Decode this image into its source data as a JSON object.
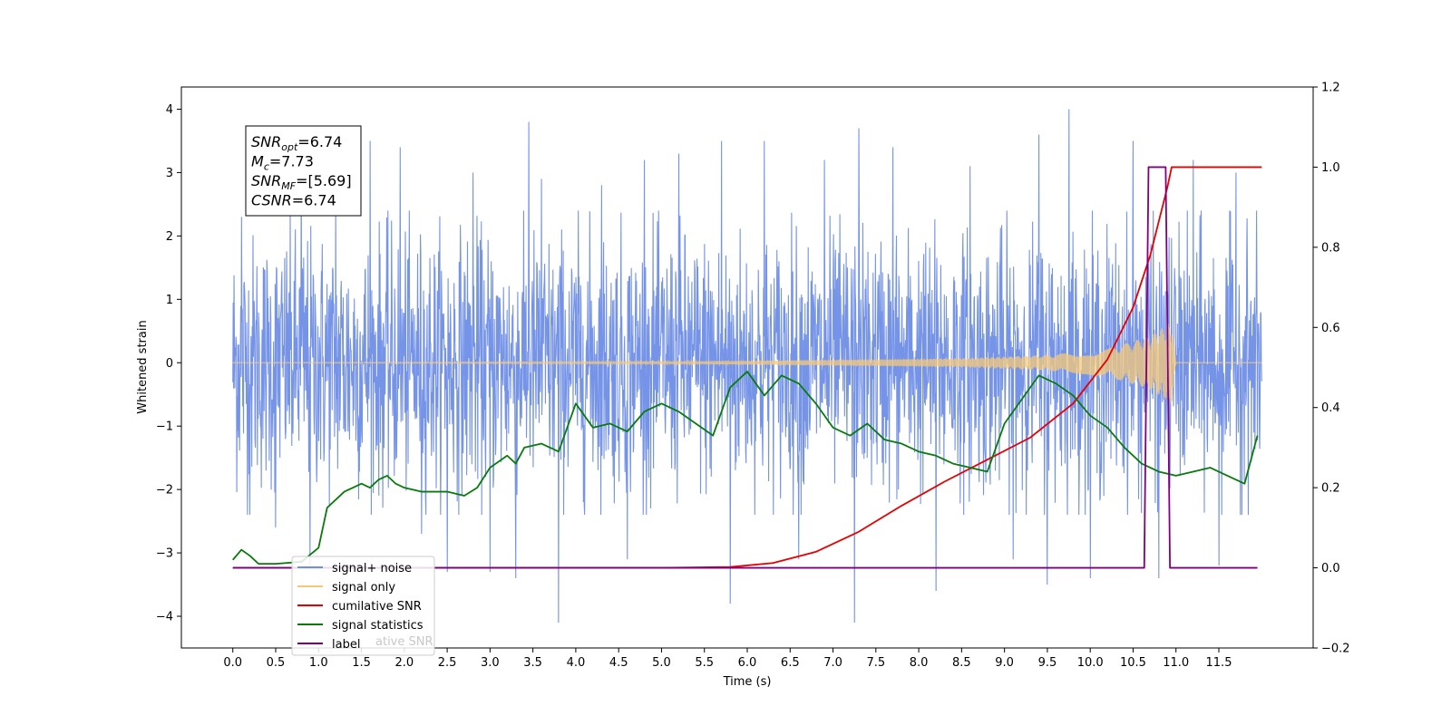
{
  "chart_data": {
    "type": "line",
    "xlabel": "Time (s)",
    "ylabel_left": "Whitened strain",
    "ylabel_right": "",
    "xlim": [
      -0.6,
      12.6
    ],
    "ylim_left": [
      -4.5,
      4.35
    ],
    "ylim_right": [
      -0.2,
      1.2
    ],
    "x_ticks": [
      0.0,
      0.5,
      1.0,
      1.5,
      2.0,
      2.5,
      3.0,
      3.5,
      4.0,
      4.5,
      5.0,
      5.5,
      6.0,
      6.5,
      7.0,
      7.5,
      8.0,
      8.5,
      9.0,
      9.5,
      10.0,
      10.5,
      11.0,
      11.5
    ],
    "x_tick_labels": [
      "0.0",
      "0.5",
      "1.0",
      "1.5",
      "2.0",
      "2.5",
      "3.0",
      "3.5",
      "4.0",
      "4.5",
      "5.0",
      "5.5",
      "6.0",
      "6.5",
      "7.0",
      "7.5",
      "8.0",
      "8.5",
      "9.0",
      "9.5",
      "10.0",
      "10.5",
      "11.0",
      "11.5"
    ],
    "y_left_ticks": [
      4,
      3,
      2,
      1,
      0,
      -1,
      -2,
      -3,
      -4
    ],
    "y_left_tick_labels": [
      "4",
      "3",
      "2",
      "1",
      "0",
      "−1",
      "−2",
      "−3",
      "−4"
    ],
    "y_right_ticks": [
      1.2,
      1.0,
      0.8,
      0.6,
      0.4,
      0.2,
      0.0,
      -0.2
    ],
    "y_right_tick_labels": [
      "1.2",
      "1.0",
      "0.8",
      "0.6",
      "0.4",
      "0.2",
      "0.0",
      "−0.2"
    ],
    "grid": false,
    "legend_position": "lower-left",
    "legend": [
      {
        "label": "signal+ noise",
        "color": "#6f8ee6"
      },
      {
        "label": "signal only",
        "color": "#f5c97a"
      },
      {
        "label": "cumilative SNR",
        "color": "#e60000"
      },
      {
        "label": "signal statistics",
        "color": "#0a7a0a"
      },
      {
        "label": "label",
        "color": "#800080"
      }
    ],
    "legend_ghost_text": "ative SNR",
    "annotation_box": [
      {
        "main": "SNR",
        "sub": "opt",
        "value": "=6.74"
      },
      {
        "main": "M",
        "sub": "c",
        "value": "=7.73"
      },
      {
        "main": "SNR",
        "sub": "MF",
        "value": "=[5.69]"
      },
      {
        "main": "CSNR",
        "sub": "",
        "value": "=6.74"
      }
    ],
    "series": [
      {
        "name": "signal+ noise",
        "axis": "left",
        "color": "#6f8ee6",
        "x_range": [
          0.0,
          12.0
        ],
        "typical_amplitude": 1.6,
        "spikes": [
          [
            0.1,
            2.3
          ],
          [
            0.2,
            -2.4
          ],
          [
            0.5,
            -2.6
          ],
          [
            0.8,
            3.0
          ],
          [
            0.9,
            -3.2
          ],
          [
            1.2,
            2.6
          ],
          [
            1.6,
            3.5
          ],
          [
            1.95,
            3.4
          ],
          [
            2.2,
            -2.7
          ],
          [
            2.5,
            -3.3
          ],
          [
            2.8,
            3.0
          ],
          [
            3.0,
            -3.3
          ],
          [
            3.3,
            -3.4
          ],
          [
            3.45,
            3.8
          ],
          [
            3.6,
            2.9
          ],
          [
            3.8,
            -4.1
          ],
          [
            4.3,
            2.8
          ],
          [
            4.6,
            -3.1
          ],
          [
            4.8,
            3.2
          ],
          [
            5.2,
            3.3
          ],
          [
            5.7,
            3.5
          ],
          [
            5.8,
            -3.8
          ],
          [
            6.2,
            3.5
          ],
          [
            6.6,
            -3.1
          ],
          [
            6.9,
            3.2
          ],
          [
            7.25,
            -4.1
          ],
          [
            7.3,
            3.7
          ],
          [
            7.7,
            3.4
          ],
          [
            8.2,
            -3.6
          ],
          [
            8.6,
            3.1
          ],
          [
            9.1,
            -3.1
          ],
          [
            9.4,
            3.6
          ],
          [
            9.5,
            -3.5
          ],
          [
            9.75,
            4.0
          ],
          [
            10.0,
            -3.4
          ],
          [
            10.5,
            3.5
          ],
          [
            10.8,
            -3.4
          ],
          [
            11.2,
            3.2
          ],
          [
            11.5,
            -3.2
          ],
          [
            11.7,
            3.0
          ]
        ]
      },
      {
        "name": "signal only",
        "axis": "left",
        "color": "#f5c97a",
        "x_range": [
          0.0,
          12.0
        ],
        "envelope_points": [
          [
            0.0,
            0.0
          ],
          [
            5.5,
            0.02
          ],
          [
            8.5,
            0.07
          ],
          [
            9.5,
            0.12
          ],
          [
            10.2,
            0.22
          ],
          [
            10.7,
            0.42
          ],
          [
            10.95,
            0.65
          ],
          [
            11.0,
            0.0
          ],
          [
            12.0,
            0.0
          ]
        ]
      },
      {
        "name": "cumilative SNR",
        "axis": "right",
        "color": "#e60000",
        "x": [
          0.0,
          5.0,
          5.8,
          6.3,
          6.8,
          7.3,
          7.8,
          8.3,
          8.8,
          9.3,
          9.8,
          10.2,
          10.5,
          10.7,
          10.9,
          10.95,
          11.0,
          11.5,
          12.0
        ],
        "values": [
          0.0,
          0.0,
          0.002,
          0.012,
          0.04,
          0.09,
          0.155,
          0.215,
          0.27,
          0.325,
          0.41,
          0.52,
          0.65,
          0.78,
          0.95,
          1.0,
          1.0,
          1.0,
          1.0
        ]
      },
      {
        "name": "signal statistics",
        "axis": "right",
        "color": "#0a7a0a",
        "x": [
          0.0,
          0.1,
          0.2,
          0.3,
          0.5,
          0.8,
          1.0,
          1.1,
          1.2,
          1.3,
          1.4,
          1.5,
          1.6,
          1.7,
          1.8,
          1.9,
          2.0,
          2.2,
          2.5,
          2.7,
          2.85,
          3.0,
          3.2,
          3.3,
          3.4,
          3.6,
          3.8,
          4.0,
          4.2,
          4.4,
          4.6,
          4.8,
          5.0,
          5.2,
          5.4,
          5.6,
          5.8,
          6.0,
          6.2,
          6.4,
          6.6,
          6.8,
          7.0,
          7.2,
          7.4,
          7.6,
          7.8,
          8.0,
          8.2,
          8.4,
          8.6,
          8.8,
          9.0,
          9.2,
          9.4,
          9.6,
          9.8,
          10.0,
          10.2,
          10.4,
          10.6,
          10.8,
          11.0,
          11.2,
          11.4,
          11.6,
          11.8,
          11.95
        ],
        "values": [
          0.02,
          0.045,
          0.03,
          0.01,
          0.01,
          0.015,
          0.05,
          0.15,
          0.17,
          0.19,
          0.2,
          0.21,
          0.2,
          0.22,
          0.23,
          0.21,
          0.2,
          0.19,
          0.19,
          0.18,
          0.2,
          0.25,
          0.28,
          0.26,
          0.3,
          0.31,
          0.29,
          0.41,
          0.35,
          0.36,
          0.34,
          0.39,
          0.41,
          0.39,
          0.36,
          0.33,
          0.45,
          0.49,
          0.43,
          0.48,
          0.46,
          0.41,
          0.35,
          0.33,
          0.36,
          0.32,
          0.31,
          0.29,
          0.28,
          0.26,
          0.25,
          0.24,
          0.36,
          0.42,
          0.48,
          0.46,
          0.43,
          0.38,
          0.35,
          0.3,
          0.26,
          0.24,
          0.23,
          0.24,
          0.25,
          0.23,
          0.21,
          0.33
        ]
      },
      {
        "name": "label",
        "axis": "right",
        "color": "#800080",
        "x": [
          0.0,
          10.63,
          10.68,
          10.88,
          10.93,
          11.95
        ],
        "values": [
          0.0,
          0.0,
          1.0,
          1.0,
          0.0,
          0.0
        ]
      }
    ]
  }
}
